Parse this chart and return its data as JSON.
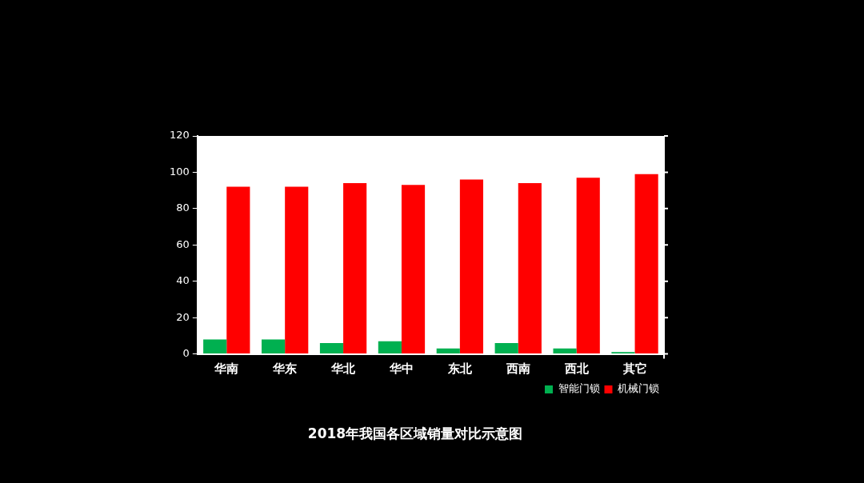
{
  "chart_data": {
    "type": "bar",
    "title": "2018年我国各区域销量对比示意图",
    "categories": [
      "华南",
      "华东",
      "华北",
      "华中",
      "东北",
      "西南",
      "西北",
      "其它"
    ],
    "series": [
      {
        "name": "智能门锁",
        "color": "#00b050",
        "values": [
          8,
          8,
          6,
          7,
          3,
          6,
          3,
          1
        ]
      },
      {
        "name": "机械门锁",
        "color": "#ff0000",
        "values": [
          92,
          92,
          94,
          93,
          96,
          94,
          97,
          99
        ]
      }
    ],
    "ylim": [
      0,
      120
    ],
    "yticks": [
      0,
      20,
      40,
      60,
      80,
      100,
      120
    ],
    "grid": false,
    "legend": "bottom right"
  }
}
